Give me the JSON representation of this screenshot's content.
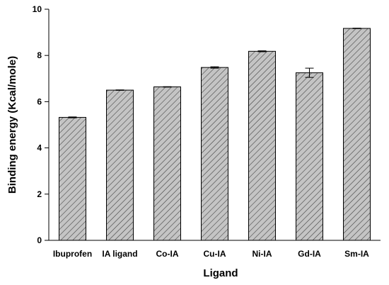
{
  "chart_data": {
    "type": "bar",
    "title": "",
    "xlabel": "Ligand",
    "ylabel": "Binding energy (Kcal/mole)",
    "categories": [
      "Ibuprofen",
      "IA ligand",
      "Co-IA",
      "Cu-IA",
      "Ni-IA",
      "Gd-IA",
      "Sm-IA"
    ],
    "values": [
      5.32,
      6.5,
      6.64,
      7.48,
      8.18,
      7.25,
      9.17
    ],
    "errors": [
      0.02,
      0.01,
      0.01,
      0.03,
      0.02,
      0.2,
      0.01
    ],
    "ylim": [
      0,
      10
    ],
    "yticks": [
      0,
      2,
      4,
      6,
      8,
      10
    ],
    "ytick_labels": [
      "0",
      "2",
      "4",
      "6",
      "8",
      "10"
    ],
    "grid": false,
    "bar_fill": "#c4c4c4",
    "hatch_color": "#3a3a3a"
  }
}
